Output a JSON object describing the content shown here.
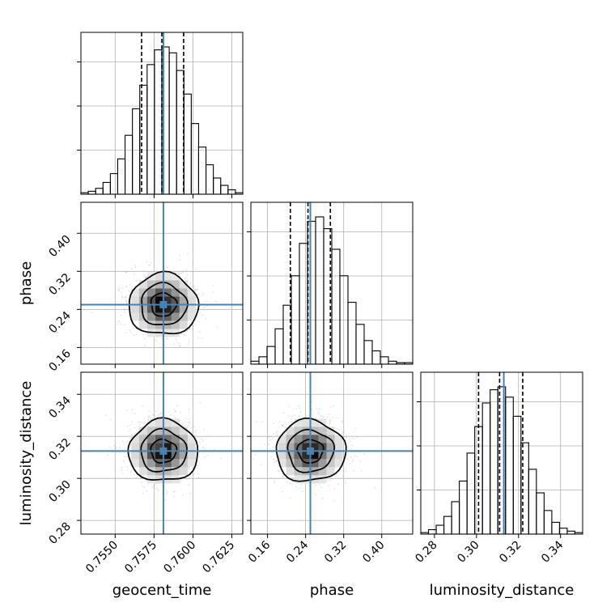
{
  "chart_data": {
    "type": "corner",
    "parameters": [
      "geocent_time",
      "phase",
      "luminosity_distance"
    ],
    "truths": {
      "geocent_time": 0.7581,
      "phase": 0.25,
      "luminosity_distance": 0.313
    },
    "quantiles": {
      "geocent_time": [
        0.7567,
        0.758,
        0.7594
      ],
      "phase": [
        0.208,
        0.245,
        0.292
      ],
      "luminosity_distance": [
        0.301,
        0.311,
        0.322
      ]
    },
    "ranges": {
      "geocent_time": [
        0.7528,
        0.7632
      ],
      "phase": [
        0.125,
        0.465
      ],
      "luminosity_distance": [
        0.2735,
        0.3505
      ]
    },
    "ticks": {
      "geocent_time": {
        "values": [
          0.755,
          0.7575,
          0.76,
          0.7625
        ],
        "labels": [
          "0.7550",
          "0.7575",
          "0.7600",
          "0.7625"
        ]
      },
      "phase": {
        "values": [
          0.16,
          0.24,
          0.32,
          0.4
        ],
        "labels": [
          "0.16",
          "0.24",
          "0.32",
          "0.40"
        ]
      },
      "luminosity_distance": {
        "values": [
          0.28,
          0.3,
          0.32,
          0.34
        ],
        "labels": [
          "0.28",
          "0.30",
          "0.32",
          "0.34"
        ]
      }
    },
    "histograms": {
      "geocent_time": [
        1,
        2,
        4,
        8,
        14,
        24,
        40,
        58,
        74,
        88,
        98,
        100,
        96,
        84,
        68,
        48,
        32,
        20,
        11,
        6,
        3,
        1
      ],
      "phase": [
        2,
        5,
        12,
        24,
        40,
        60,
        82,
        97,
        100,
        92,
        78,
        60,
        42,
        27,
        16,
        9,
        5,
        2,
        1,
        1
      ],
      "luminosity_distance": [
        1,
        3,
        6,
        12,
        22,
        36,
        55,
        73,
        89,
        98,
        100,
        93,
        80,
        62,
        44,
        28,
        16,
        8,
        4,
        2,
        1
      ]
    },
    "grid": true,
    "colors": {
      "truth": "#4682b4",
      "hist": "#000000",
      "grid": "#b0b0b0",
      "scatter": "#aaaaaa"
    },
    "xlabels": [
      "geocent_time",
      "phase",
      "luminosity_distance"
    ],
    "ylabels": [
      "phase",
      "luminosity_distance"
    ]
  }
}
